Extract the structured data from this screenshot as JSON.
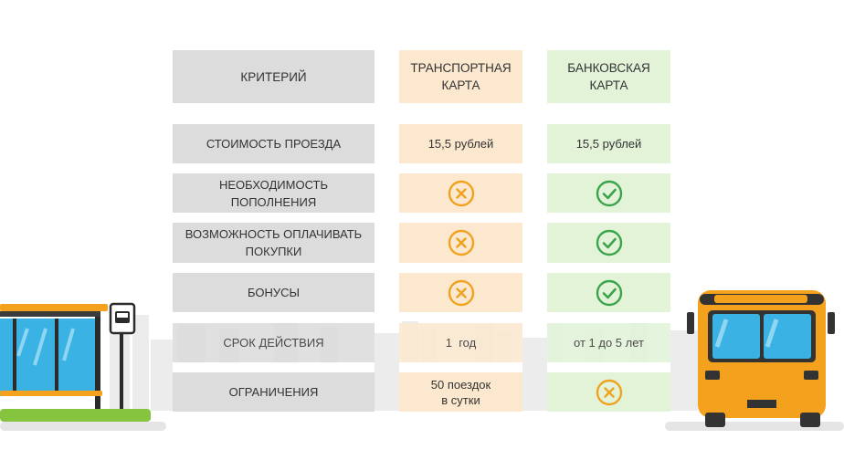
{
  "header": {
    "criterion": "КРИТЕРИЙ",
    "transport_card": "ТРАНСПОРТНАЯ\nКАРТА",
    "bank_card": "БАНКОВСКАЯ\nКАРТА"
  },
  "rows": [
    {
      "criterion": "СТОИМОСТЬ ПРОЕЗДА",
      "transport": "15,5 рублей",
      "bank": "15,5 рублей"
    },
    {
      "criterion": "НЕОБХОДИМОСТЬ\nПОПОЛНЕНИЯ",
      "transport_icon": "cross-circle-icon",
      "bank_icon": "check-circle-icon"
    },
    {
      "criterion": "ВОЗМОЖНОСТЬ ОПЛАЧИВАТЬ\nПОКУПКИ",
      "transport_icon": "cross-circle-icon",
      "bank_icon": "check-circle-icon"
    },
    {
      "criterion": "БОНУСЫ",
      "transport_icon": "cross-circle-icon",
      "bank_icon": "check-circle-icon"
    },
    {
      "criterion": "СРОК ДЕЙСТВИЯ",
      "transport": "1  год",
      "bank": "от 1 до 5 лет"
    },
    {
      "criterion": "ОГРАНИЧЕНИЯ",
      "transport": "50 поездок\nв сутки",
      "bank_icon": "cross-circle-icon"
    }
  ],
  "colors": {
    "criterion_bg": "#dcdcdc",
    "transport_bg": "#fbe8cf",
    "bank_bg": "#e2f3d8",
    "cross": "#f0a21f",
    "check": "#3aa44a",
    "bus": "#f4a11e",
    "bus_glass": "#3ab2e4",
    "grass": "#86c440"
  }
}
